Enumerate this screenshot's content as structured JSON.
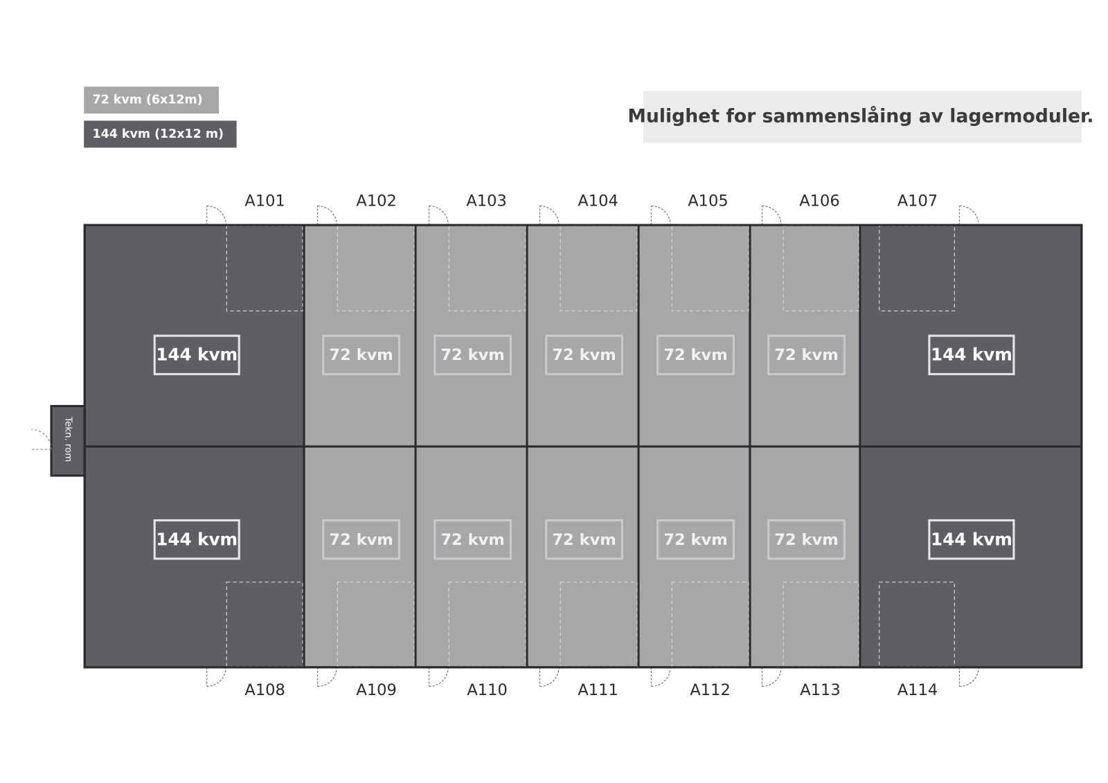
{
  "legend": [
    {
      "label": "72 kvm (6x12m)",
      "color": "#a6a7a9"
    },
    {
      "label": "144 kvm (12x12 m)",
      "color": "#5d5f62"
    }
  ],
  "note": "Mulighet for sammenslåing av lagermoduler.",
  "technical_room": "Tekn. rom",
  "units": [
    {
      "id": "A101",
      "area": "144 kvm",
      "color": "#5d5f62"
    },
    {
      "id": "A102",
      "area": "72 kvm",
      "color": "#a6a7a9"
    },
    {
      "id": "A103",
      "area": "72 kvm",
      "color": "#a6a7a9"
    },
    {
      "id": "A104",
      "area": "72 kvm",
      "color": "#a6a7a9"
    },
    {
      "id": "A105",
      "area": "72 kvm",
      "color": "#a6a7a9"
    },
    {
      "id": "A106",
      "area": "72 kvm",
      "color": "#a6a7a9"
    },
    {
      "id": "A107",
      "area": "144 kvm",
      "color": "#5d5f62"
    },
    {
      "id": "A108",
      "area": "144 kvm",
      "color": "#5d5f62"
    },
    {
      "id": "A109",
      "area": "72 kvm",
      "color": "#a6a7a9"
    },
    {
      "id": "A110",
      "area": "72 kvm",
      "color": "#a6a7a9"
    },
    {
      "id": "A111",
      "area": "72 kvm",
      "color": "#a6a7a9"
    },
    {
      "id": "A112",
      "area": "72 kvm",
      "color": "#a6a7a9"
    },
    {
      "id": "A113",
      "area": "72 kvm",
      "color": "#a6a7a9"
    },
    {
      "id": "A114",
      "area": "144 kvm",
      "color": "#5d5f62"
    }
  ]
}
